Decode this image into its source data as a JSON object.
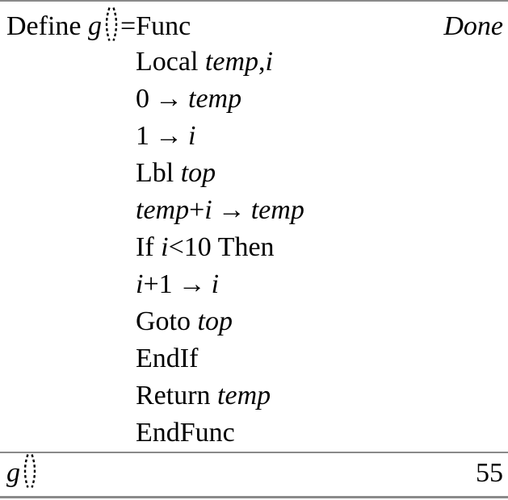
{
  "colors": {
    "background": "#ffffff",
    "text": "#000000",
    "rule_gray": "#8a8a8a"
  },
  "glyphs": {
    "store_arrow": "→",
    "empty_parens": "()"
  },
  "program": {
    "lines": [
      {
        "indent": false,
        "left": [
          {
            "t": "Define ",
            "s": "r"
          },
          {
            "t": "g",
            "s": "i"
          },
          {
            "k": "parens"
          },
          {
            "t": "=Func",
            "s": "r"
          }
        ],
        "right": [
          {
            "t": "Done",
            "s": "i"
          }
        ]
      },
      {
        "indent": true,
        "left": [
          {
            "t": "Local ",
            "s": "r"
          },
          {
            "t": "temp",
            "s": "i"
          },
          {
            "t": ",",
            "s": "r"
          },
          {
            "t": "i",
            "s": "i"
          }
        ]
      },
      {
        "indent": true,
        "left": [
          {
            "t": "0",
            "s": "r"
          },
          {
            "k": "arrow"
          },
          {
            "t": "temp",
            "s": "i"
          }
        ]
      },
      {
        "indent": true,
        "left": [
          {
            "t": "1",
            "s": "r"
          },
          {
            "k": "arrow"
          },
          {
            "t": "i",
            "s": "i"
          }
        ]
      },
      {
        "indent": true,
        "left": [
          {
            "t": "Lbl ",
            "s": "r"
          },
          {
            "t": "top",
            "s": "i"
          }
        ]
      },
      {
        "indent": true,
        "left": [
          {
            "t": "temp",
            "s": "i"
          },
          {
            "t": "+",
            "s": "r"
          },
          {
            "t": "i",
            "s": "i"
          },
          {
            "k": "arrow"
          },
          {
            "t": "temp",
            "s": "i"
          }
        ]
      },
      {
        "indent": true,
        "left": [
          {
            "t": "If ",
            "s": "r"
          },
          {
            "t": "i",
            "s": "i"
          },
          {
            "t": "<10 Then",
            "s": "r"
          }
        ]
      },
      {
        "indent": true,
        "left": [
          {
            "t": "i",
            "s": "i"
          },
          {
            "t": "+1",
            "s": "r"
          },
          {
            "k": "arrow"
          },
          {
            "t": "i",
            "s": "i"
          }
        ]
      },
      {
        "indent": true,
        "left": [
          {
            "t": "Goto ",
            "s": "r"
          },
          {
            "t": "top",
            "s": "i"
          }
        ]
      },
      {
        "indent": true,
        "left": [
          {
            "t": "EndIf",
            "s": "r"
          }
        ]
      },
      {
        "indent": true,
        "left": [
          {
            "t": "Return ",
            "s": "r"
          },
          {
            "t": "temp",
            "s": "i"
          }
        ]
      },
      {
        "indent": true,
        "left": [
          {
            "t": "EndFunc",
            "s": "r"
          }
        ]
      }
    ]
  },
  "entry": {
    "expression_segments": [
      {
        "t": "g",
        "s": "i"
      },
      {
        "k": "parens"
      }
    ],
    "result": "55"
  }
}
